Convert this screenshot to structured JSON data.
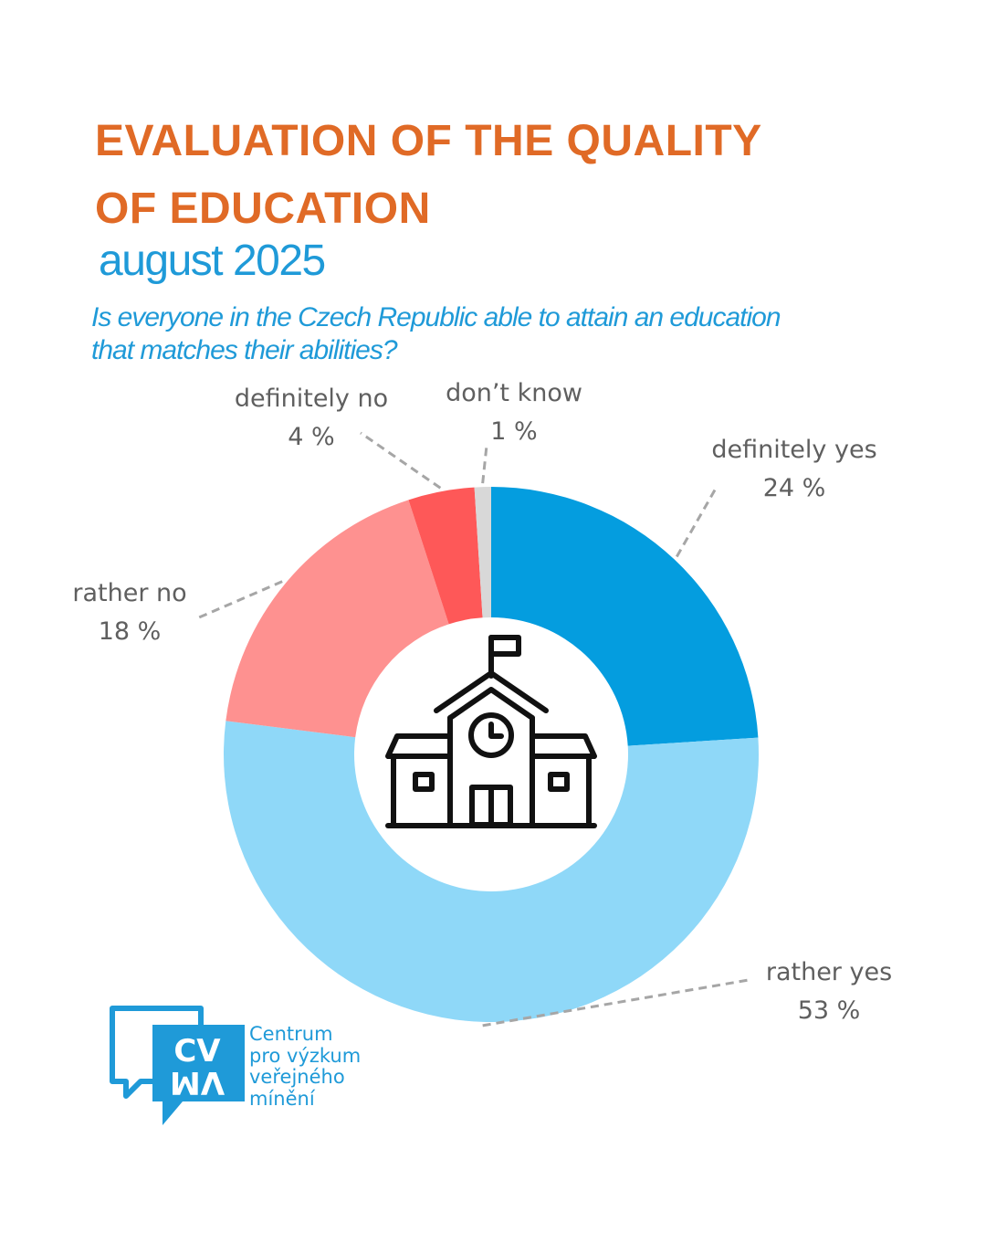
{
  "header": {
    "title_line1": "EVALUATION OF THE QUALITY",
    "title_line2": "OF EDUCATION",
    "subtitle": "august 2025",
    "question_line1": "Is everyone in the Czech Republic able to attain an education",
    "question_line2": "that matches their abilities?"
  },
  "chart_data": {
    "type": "pie",
    "donut": true,
    "categories": [
      "definitely yes",
      "rather yes",
      "rather no",
      "definitely no",
      "don’t know"
    ],
    "values": [
      24,
      53,
      18,
      4,
      1
    ],
    "value_labels": [
      "24 %",
      "53 %",
      "18 %",
      "4 %",
      "1 %"
    ],
    "colors": [
      "#049ddf",
      "#8fd8f8",
      "#fe9190",
      "#fe5858",
      "#d8d8d8"
    ],
    "center_icon": "school-building-icon"
  },
  "logo": {
    "mark_line1": "CV",
    "mark_line2": "VM",
    "text_lines": [
      "Centrum",
      "pro výzkum",
      "veřejného",
      "mínění"
    ],
    "color": "#1f9ad8"
  }
}
